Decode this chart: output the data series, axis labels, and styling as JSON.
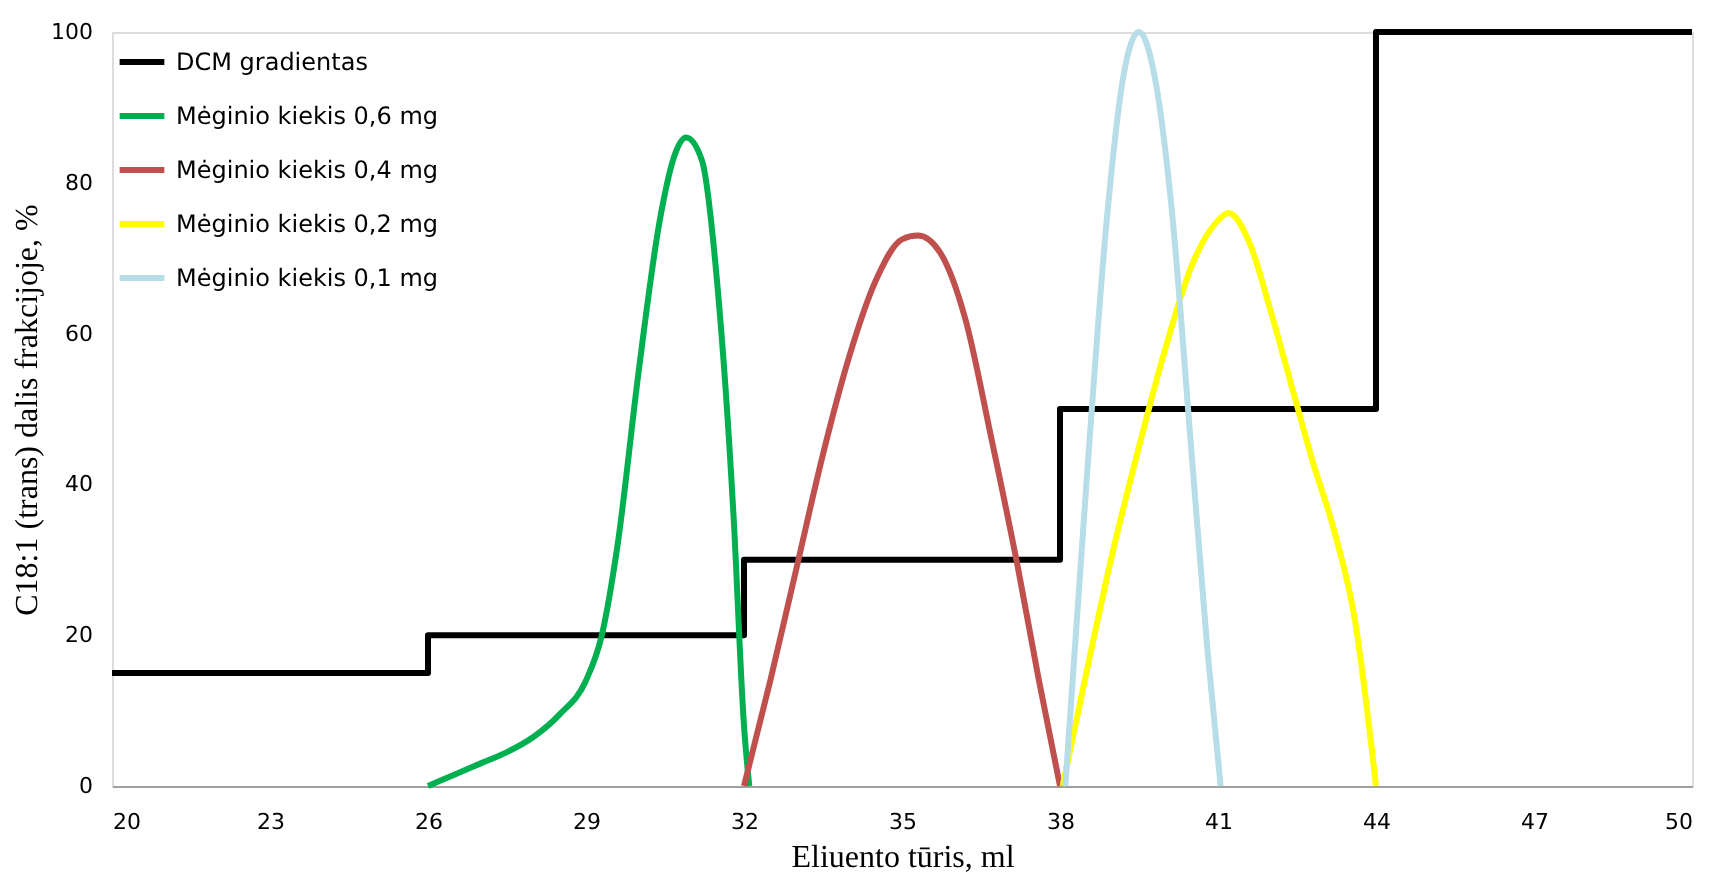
{
  "chart_data": {
    "type": "line",
    "xlabel": "Eliuento tūris, ml",
    "ylabel": "C18:1 (trans) dalis frakcijoje, %",
    "xlim": [
      20,
      50
    ],
    "xticks": [
      20,
      23,
      26,
      29,
      32,
      35,
      38,
      41,
      44,
      47,
      50
    ],
    "ylim": [
      0,
      100
    ],
    "yticks": [
      0,
      20,
      40,
      60,
      80,
      100
    ],
    "grid": false,
    "legend": "top left",
    "marker": "none",
    "line_style": "solid",
    "series": [
      {
        "name": "DCM gradientas",
        "type": "step",
        "color": "#000000",
        "x": [
          20,
          26,
          32,
          38,
          44,
          50
        ],
        "values": [
          15,
          20,
          30,
          50,
          100,
          100
        ]
      },
      {
        "name": "Mėginio kiekis 0,6 mg",
        "color": "#00b050",
        "x": [
          26,
          26.5,
          27,
          27.5,
          28,
          28.5,
          29,
          29.3,
          29.6,
          30,
          30.4,
          30.7,
          30.9,
          31.2,
          31.5,
          31.8,
          32,
          32.1
        ],
        "values": [
          0,
          1.5,
          3,
          4.5,
          6.5,
          9.5,
          14,
          20,
          32,
          55,
          75,
          84,
          86,
          83,
          66,
          36,
          8,
          0
        ]
      },
      {
        "name": "Mėginio kiekis 0,4 mg",
        "color": "#c0504d",
        "x": [
          32,
          32.5,
          33,
          33.5,
          34,
          34.5,
          35,
          35.3,
          35.7,
          36.2,
          36.7,
          37.2,
          37.6,
          38
        ],
        "values": [
          0,
          14,
          29,
          44,
          57,
          67,
          72.5,
          73,
          71,
          62,
          46,
          29,
          14,
          0
        ]
      },
      {
        "name": "Mėginio kiekis 0,2 mg",
        "color": "#ffff00",
        "x": [
          38.05,
          38.5,
          39,
          39.5,
          40,
          40.5,
          41,
          41.2,
          41.6,
          42,
          42.4,
          42.8,
          43.2,
          43.6,
          44
        ],
        "values": [
          0,
          15,
          31,
          45,
          58,
          69,
          75,
          76,
          72,
          63,
          53,
          43,
          34,
          22,
          0
        ]
      },
      {
        "name": "Mėginio kiekis 0,1 mg",
        "color": "#b7dde8",
        "x": [
          38.1,
          38.5,
          38.9,
          39.2,
          39.5,
          39.8,
          40.1,
          40.5,
          40.8,
          41.05
        ],
        "values": [
          0,
          40,
          76,
          94,
          100,
          94,
          78,
          44,
          18,
          0
        ]
      }
    ]
  }
}
